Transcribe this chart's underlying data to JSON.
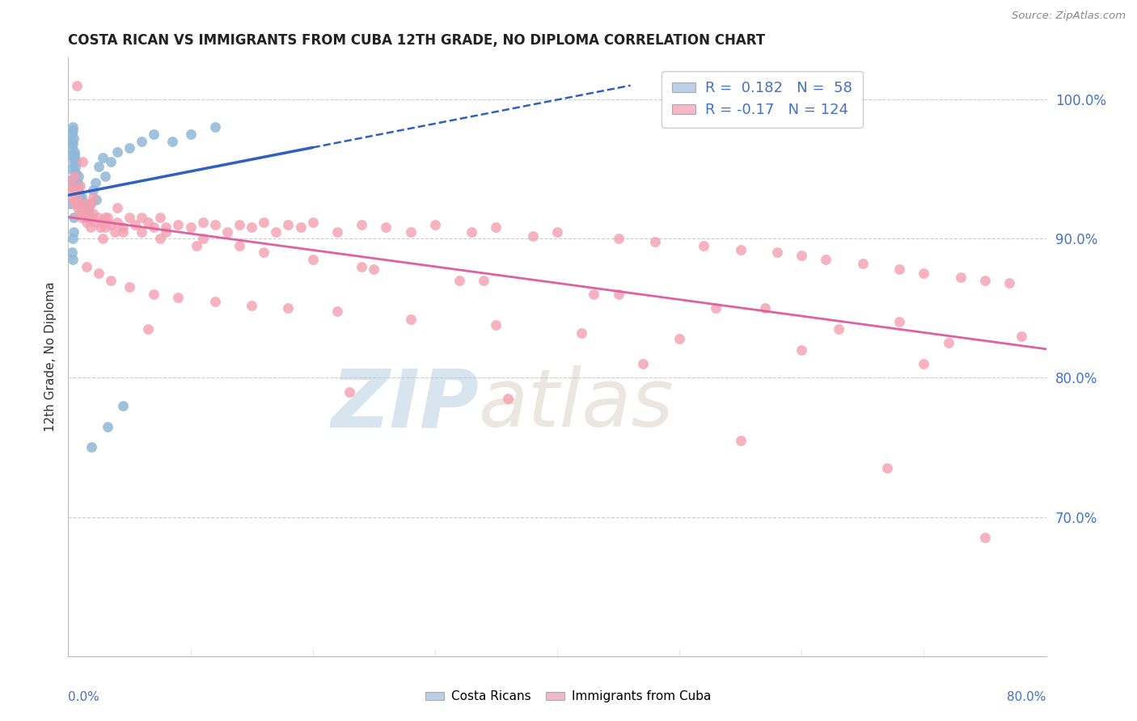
{
  "title": "COSTA RICAN VS IMMIGRANTS FROM CUBA 12TH GRADE, NO DIPLOMA CORRELATION CHART",
  "source": "Source: ZipAtlas.com",
  "ylabel": "12th Grade, No Diploma",
  "legend_cr_R": 0.182,
  "legend_cr_N": 58,
  "legend_cuba_R": -0.17,
  "legend_cuba_N": 124,
  "blue_scatter_color": "#90b8d8",
  "pink_scatter_color": "#f4a0b0",
  "blue_line_color": "#3060c0",
  "pink_line_color": "#e060a0",
  "ytick_color": "#4472c4",
  "grid_color": "#cccccc",
  "background_color": "#ffffff",
  "watermark_color": "#c5d8e8",
  "title_color": "#222222",
  "source_color": "#888888",
  "xlim_data": [
    0.0,
    80.0
  ],
  "ylim_data": [
    60.0,
    103.0
  ],
  "ytick_vals": [
    70,
    80,
    90,
    100
  ],
  "ytick_labels": [
    "70.0%",
    "80.0%",
    "90.0%",
    "100.0%"
  ],
  "blue_x": [
    0.15,
    0.18,
    0.2,
    0.22,
    0.25,
    0.28,
    0.3,
    0.32,
    0.35,
    0.38,
    0.4,
    0.42,
    0.45,
    0.48,
    0.5,
    0.52,
    0.55,
    0.58,
    0.6,
    0.65,
    0.7,
    0.75,
    0.8,
    0.85,
    0.9,
    0.95,
    1.0,
    1.1,
    1.2,
    1.3,
    1.4,
    1.5,
    1.6,
    1.7,
    1.8,
    2.0,
    2.2,
    2.5,
    2.8,
    3.0,
    3.5,
    4.0,
    5.0,
    6.0,
    7.0,
    8.5,
    10.0,
    12.0,
    2.3,
    0.42,
    0.38,
    0.3,
    0.45,
    0.35,
    4.5,
    3.2,
    1.9,
    1.2
  ],
  "blue_y": [
    92.5,
    93.8,
    94.2,
    95.0,
    96.0,
    97.0,
    97.5,
    96.5,
    97.8,
    98.0,
    96.8,
    97.2,
    95.5,
    96.2,
    95.8,
    96.0,
    94.5,
    95.2,
    94.8,
    95.5,
    93.5,
    94.0,
    93.8,
    94.5,
    93.2,
    92.8,
    92.5,
    93.0,
    92.2,
    91.8,
    92.5,
    91.5,
    92.0,
    91.8,
    92.5,
    93.5,
    94.0,
    95.2,
    95.8,
    94.5,
    95.5,
    96.2,
    96.5,
    97.0,
    97.5,
    97.0,
    97.5,
    98.0,
    92.8,
    90.5,
    88.5,
    89.0,
    91.5,
    90.0,
    78.0,
    76.5,
    75.0,
    92.0
  ],
  "pink_x": [
    0.2,
    0.3,
    0.4,
    0.5,
    0.6,
    0.7,
    0.8,
    0.9,
    1.0,
    1.1,
    1.2,
    1.3,
    1.4,
    1.5,
    1.6,
    1.7,
    1.8,
    1.9,
    2.0,
    2.2,
    2.4,
    2.6,
    2.8,
    3.0,
    3.2,
    3.5,
    3.8,
    4.0,
    4.5,
    5.0,
    5.5,
    6.0,
    6.5,
    7.0,
    7.5,
    8.0,
    9.0,
    10.0,
    11.0,
    12.0,
    13.0,
    14.0,
    15.0,
    16.0,
    17.0,
    18.0,
    19.0,
    20.0,
    22.0,
    24.0,
    26.0,
    28.0,
    30.0,
    33.0,
    35.0,
    38.0,
    40.0,
    45.0,
    48.0,
    52.0,
    55.0,
    58.0,
    60.0,
    62.0,
    65.0,
    68.0,
    70.0,
    73.0,
    75.0,
    77.0,
    1.5,
    2.5,
    3.5,
    5.0,
    7.0,
    9.0,
    12.0,
    15.0,
    18.0,
    22.0,
    28.0,
    35.0,
    42.0,
    50.0,
    60.0,
    70.0,
    0.5,
    1.0,
    2.0,
    4.0,
    6.0,
    8.0,
    11.0,
    14.0,
    20.0,
    25.0,
    32.0,
    43.0,
    53.0,
    63.0,
    72.0,
    0.8,
    1.8,
    3.0,
    4.5,
    7.5,
    10.5,
    16.0,
    24.0,
    34.0,
    45.0,
    57.0,
    68.0,
    78.0,
    2.8,
    0.7,
    1.2,
    6.5,
    23.0,
    36.0,
    55.0,
    67.0,
    75.0,
    47.0
  ],
  "pink_y": [
    94.0,
    93.5,
    92.8,
    93.2,
    92.5,
    93.0,
    92.2,
    91.8,
    92.5,
    91.5,
    92.0,
    91.8,
    92.5,
    91.2,
    92.0,
    91.5,
    90.8,
    91.5,
    91.8,
    91.2,
    91.5,
    90.8,
    91.2,
    90.8,
    91.5,
    91.0,
    90.5,
    91.2,
    90.8,
    91.5,
    91.0,
    90.5,
    91.2,
    90.8,
    91.5,
    90.5,
    91.0,
    90.8,
    91.2,
    91.0,
    90.5,
    91.0,
    90.8,
    91.2,
    90.5,
    91.0,
    90.8,
    91.2,
    90.5,
    91.0,
    90.8,
    90.5,
    91.0,
    90.5,
    90.8,
    90.2,
    90.5,
    90.0,
    89.8,
    89.5,
    89.2,
    89.0,
    88.8,
    88.5,
    88.2,
    87.8,
    87.5,
    87.2,
    87.0,
    86.8,
    88.0,
    87.5,
    87.0,
    86.5,
    86.0,
    85.8,
    85.5,
    85.2,
    85.0,
    84.8,
    84.2,
    83.8,
    83.2,
    82.8,
    82.0,
    81.0,
    94.5,
    93.8,
    93.0,
    92.2,
    91.5,
    90.8,
    90.0,
    89.5,
    88.5,
    87.8,
    87.0,
    86.0,
    85.0,
    83.5,
    82.5,
    93.5,
    92.5,
    91.5,
    90.5,
    90.0,
    89.5,
    89.0,
    88.0,
    87.0,
    86.0,
    85.0,
    84.0,
    83.0,
    90.0,
    101.0,
    95.5,
    83.5,
    79.0,
    78.5,
    75.5,
    73.5,
    68.5,
    81.0
  ]
}
